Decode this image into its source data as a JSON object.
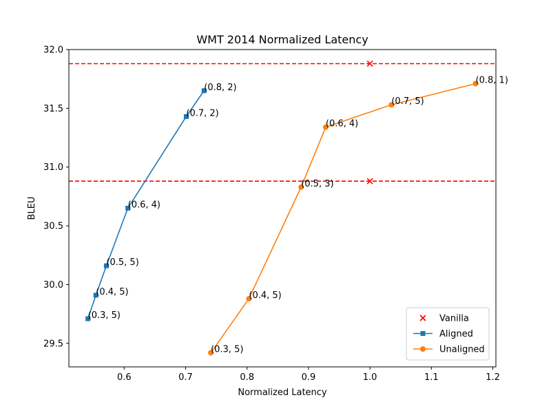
{
  "chart_data": {
    "type": "line",
    "title": "WMT 2014 Normalized Latency",
    "xlabel": "Normalized Latency",
    "ylabel": "BLEU",
    "xlim": [
      0.51,
      1.205
    ],
    "ylim": [
      29.3,
      32.0
    ],
    "xticks": [
      0.6,
      0.7,
      0.8,
      0.9,
      1.0,
      1.1,
      1.2
    ],
    "xtick_labels": [
      "0.6",
      "0.7",
      "0.8",
      "0.9",
      "1.0",
      "1.1",
      "1.2"
    ],
    "yticks": [
      29.5,
      30.0,
      30.5,
      31.0,
      31.5,
      32.0
    ],
    "ytick_labels": [
      "29.5",
      "30.0",
      "30.5",
      "31.0",
      "31.5",
      "32.0"
    ],
    "grid": false,
    "legend_position": "lower-right",
    "hlines": [
      {
        "y": 31.88,
        "color": "#ff0000",
        "style": "dashed"
      },
      {
        "y": 30.88,
        "color": "#ff0000",
        "style": "dashed"
      }
    ],
    "series": [
      {
        "name": "Vanilla",
        "type": "scatter",
        "marker": "x",
        "color": "#ff0000",
        "x": [
          1.0,
          1.0
        ],
        "y": [
          31.88,
          30.88
        ],
        "labels": []
      },
      {
        "name": "Aligned",
        "type": "line",
        "marker": "square",
        "color": "#1f77b4",
        "x": [
          0.541,
          0.554,
          0.571,
          0.606,
          0.701,
          0.73
        ],
        "y": [
          29.71,
          29.91,
          30.16,
          30.65,
          31.43,
          31.65
        ],
        "labels": [
          "(0.3, 5)",
          "(0.4, 5)",
          "(0.5, 5)",
          "(0.6, 4)",
          "(0.7, 2)",
          "(0.8, 2)"
        ]
      },
      {
        "name": "Unaligned",
        "type": "line",
        "marker": "circle",
        "color": "#ff7f0e",
        "x": [
          0.741,
          0.803,
          0.888,
          0.928,
          1.035,
          1.172
        ],
        "y": [
          29.42,
          29.88,
          30.83,
          31.34,
          31.53,
          31.71
        ],
        "labels": [
          "(0.3, 5)",
          "(0.4, 5)",
          "(0.5, 3)",
          "(0.6, 4)",
          "(0.7, 5)",
          "(0.8, 1)"
        ]
      }
    ]
  }
}
